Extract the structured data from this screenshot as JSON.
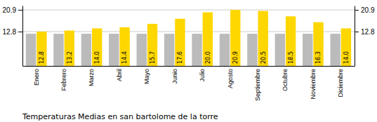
{
  "chart_data": {
    "type": "bar",
    "title": "Temperaturas Medias en san bartolome de la torre",
    "categories": [
      "Enero",
      "Febrero",
      "Marzo",
      "Abril",
      "Mayo",
      "Junio",
      "Julio",
      "Agosto",
      "Septiembre",
      "Octubre",
      "Noviembre",
      "Diciembre"
    ],
    "series": [
      {
        "color": "#BBBBBB",
        "values": [
          12.0,
          12.0,
          12.0,
          12.0,
          12.0,
          12.0,
          12.0,
          12.0,
          12.0,
          12.0,
          12.0,
          12.0
        ]
      },
      {
        "color": "#FFD700",
        "values": [
          12.8,
          13.2,
          14.0,
          14.4,
          15.7,
          17.6,
          20.0,
          20.9,
          20.5,
          18.5,
          16.3,
          14.0
        ],
        "value_labels": [
          "12.8",
          "13.2",
          "14.0",
          "14.4",
          "15.7",
          "17.6",
          "20.0",
          "20.9",
          "20.5",
          "18.5",
          "16.3",
          "14.0"
        ]
      }
    ],
    "ylim": [
      0,
      22.5
    ],
    "yticks": [
      12.8,
      20.9
    ],
    "y2lim": [
      0,
      22.5
    ],
    "y2ticks": [
      12.8,
      20.9
    ],
    "grid": true,
    "data_labels": true
  }
}
